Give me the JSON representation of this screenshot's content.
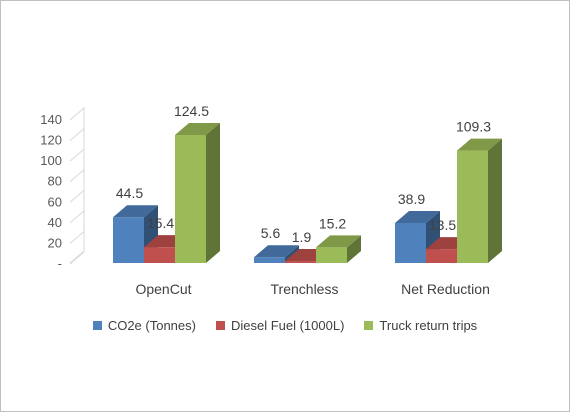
{
  "chart_data": {
    "type": "bar",
    "categories": [
      "OpenCut",
      "Trenchless",
      "Net Reduction"
    ],
    "series": [
      {
        "name": "CO2e (Tonnes)",
        "values": [
          44.5,
          5.6,
          38.9
        ],
        "color": "#4f81bd"
      },
      {
        "name": "Diesel Fuel (1000L)",
        "values": [
          15.4,
          1.9,
          13.5
        ],
        "color": "#c0504d"
      },
      {
        "name": "Truck return trips",
        "values": [
          124.5,
          15.2,
          109.3
        ],
        "color": "#9bbb59"
      }
    ],
    "data_labels": [
      [
        "44.5",
        "5.6",
        "38.9"
      ],
      [
        "15.4",
        "1.9",
        "13.5"
      ],
      [
        "124.5",
        "15.2",
        "109.3"
      ]
    ],
    "y_ticks": [
      "-",
      "20",
      "40",
      "60",
      "80",
      "100",
      "120",
      "140"
    ],
    "ylim": [
      0,
      140
    ],
    "grid": false,
    "legend_position": "bottom",
    "view": "3d-clustered"
  }
}
